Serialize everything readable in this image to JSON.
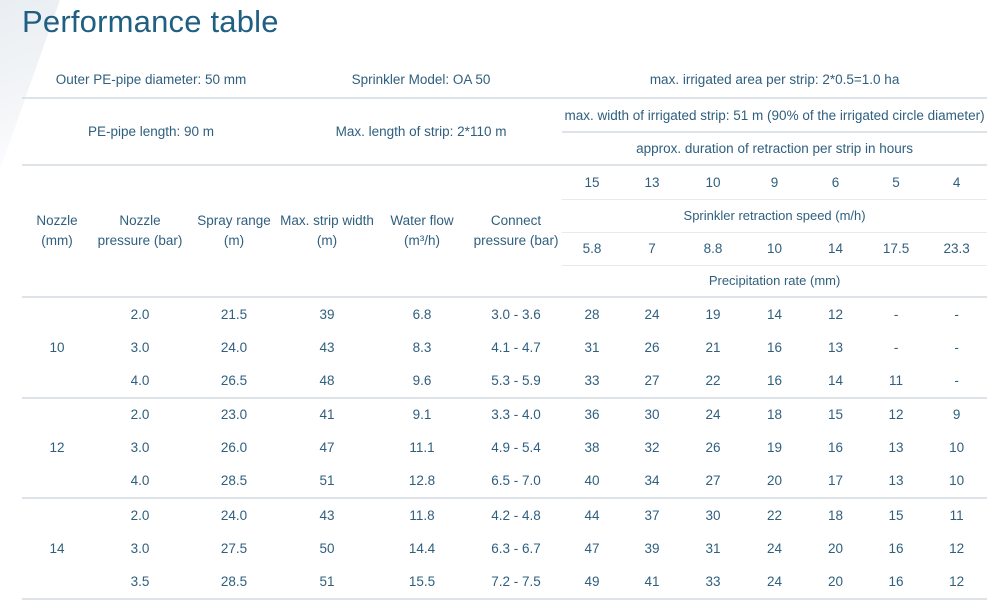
{
  "title": "Performance table",
  "info": {
    "pipe_diameter": "Outer PE-pipe diameter: 50 mm",
    "sprinkler_model": "Sprinkler Model: OA 50",
    "max_area": "max. irrigated area per strip: 2*0.5=1.0 ha",
    "pipe_length": "PE-pipe length: 90 m",
    "strip_length": "Max. length of strip: 2*110 m",
    "max_width": "max. width of irrigated strip: 51 m (90% of the irrigated circle diameter)",
    "duration": "approx. duration of retraction per strip in hours"
  },
  "headers": {
    "nozzle": "Nozzle (mm)",
    "nozzle_pressure": "Nozzle pressure (bar)",
    "spray_range": "Spray range (m)",
    "strip_width": "Max. strip width (m)",
    "water_flow": "Water flow (m³/h)",
    "connect_pressure": "Connect pressure (bar)",
    "speed_label": "Sprinkler retraction speed (m/h)",
    "precip_label": "Precipitation rate (mm)"
  },
  "hours": [
    "15",
    "13",
    "10",
    "9",
    "6",
    "5",
    "4"
  ],
  "speeds": [
    "5.8",
    "7",
    "8.8",
    "10",
    "14",
    "17.5",
    "23.3"
  ],
  "groups": [
    {
      "nozzle": "10",
      "rows": [
        {
          "pressure": "2.0",
          "range": "21.5",
          "width": "39",
          "flow": "6.8",
          "connect": "3.0 - 3.6",
          "rates": [
            "28",
            "24",
            "19",
            "14",
            "12",
            "-",
            "-"
          ]
        },
        {
          "pressure": "3.0",
          "range": "24.0",
          "width": "43",
          "flow": "8.3",
          "connect": "4.1 - 4.7",
          "rates": [
            "31",
            "26",
            "21",
            "16",
            "13",
            "-",
            "-"
          ]
        },
        {
          "pressure": "4.0",
          "range": "26.5",
          "width": "48",
          "flow": "9.6",
          "connect": "5.3 - 5.9",
          "rates": [
            "33",
            "27",
            "22",
            "16",
            "14",
            "11",
            "-"
          ]
        }
      ]
    },
    {
      "nozzle": "12",
      "rows": [
        {
          "pressure": "2.0",
          "range": "23.0",
          "width": "41",
          "flow": "9.1",
          "connect": "3.3 - 4.0",
          "rates": [
            "36",
            "30",
            "24",
            "18",
            "15",
            "12",
            "9"
          ]
        },
        {
          "pressure": "3.0",
          "range": "26.0",
          "width": "47",
          "flow": "11.1",
          "connect": "4.9 - 5.4",
          "rates": [
            "38",
            "32",
            "26",
            "19",
            "16",
            "13",
            "10"
          ]
        },
        {
          "pressure": "4.0",
          "range": "28.5",
          "width": "51",
          "flow": "12.8",
          "connect": "6.5 - 7.0",
          "rates": [
            "40",
            "34",
            "27",
            "20",
            "17",
            "13",
            "10"
          ]
        }
      ]
    },
    {
      "nozzle": "14",
      "rows": [
        {
          "pressure": "2.0",
          "range": "24.0",
          "width": "43",
          "flow": "11.8",
          "connect": "4.2 - 4.8",
          "rates": [
            "44",
            "37",
            "30",
            "22",
            "18",
            "15",
            "11"
          ]
        },
        {
          "pressure": "3.0",
          "range": "27.5",
          "width": "50",
          "flow": "14.4",
          "connect": "6.3 - 6.7",
          "rates": [
            "47",
            "39",
            "31",
            "24",
            "20",
            "16",
            "12"
          ]
        },
        {
          "pressure": "3.5",
          "range": "28.5",
          "width": "51",
          "flow": "15.5",
          "connect": "7.2 - 7.5",
          "rates": [
            "49",
            "41",
            "33",
            "24",
            "20",
            "16",
            "12"
          ]
        }
      ]
    }
  ]
}
